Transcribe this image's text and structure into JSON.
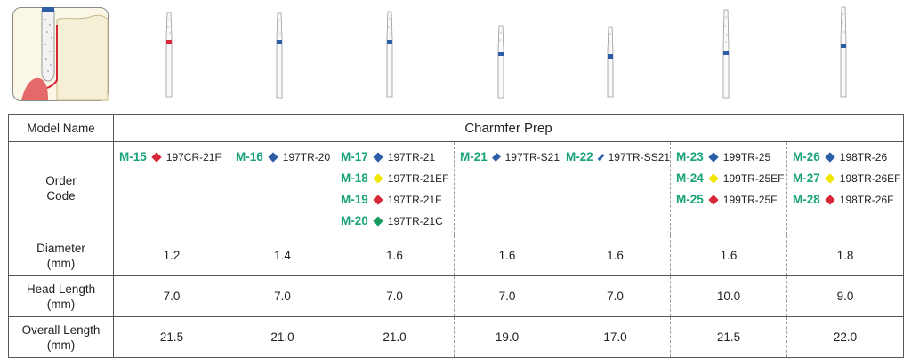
{
  "colors": {
    "model_green": "#1aa37a",
    "red": "#d72638",
    "blue": "#2b5ea7",
    "yellow": "#f2e600",
    "green": "#159b5c"
  },
  "header": {
    "model_name_label": "Model Name",
    "product_title": "Charmfer Prep",
    "order_code_label_1": "Order",
    "order_code_label_2": "Code",
    "diameter_label_1": "Diameter",
    "diameter_label_2": "(mm)",
    "head_length_label_1": "Head Length",
    "head_length_label_2": "(mm)",
    "overall_length_label_1": "Overall Length",
    "overall_length_label_2": "(mm)"
  },
  "columns": [
    {
      "codes": [
        {
          "model": "M-15",
          "marker": "red",
          "code": "197CR-21F"
        }
      ],
      "diameter": "1.2",
      "head_length": "7.0",
      "overall_length": "21.5"
    },
    {
      "codes": [
        {
          "model": "M-16",
          "marker": "blue",
          "code": "197TR-20"
        }
      ],
      "diameter": "1.4",
      "head_length": "7.0",
      "overall_length": "21.0"
    },
    {
      "codes": [
        {
          "model": "M-17",
          "marker": "blue",
          "code": "197TR-21"
        },
        {
          "model": "M-18",
          "marker": "yellow",
          "code": "197TR-21EF"
        },
        {
          "model": "M-19",
          "marker": "red",
          "code": "197TR-21F"
        },
        {
          "model": "M-20",
          "marker": "green",
          "code": "197TR-21C"
        }
      ],
      "diameter": "1.6",
      "head_length": "7.0",
      "overall_length": "21.0"
    },
    {
      "codes": [
        {
          "model": "M-21",
          "marker": "blue",
          "code": "197TR-S21"
        }
      ],
      "diameter": "1.6",
      "head_length": "7.0",
      "overall_length": "19.0"
    },
    {
      "codes": [
        {
          "model": "M-22",
          "marker": "blue",
          "code": "197TR-SS21"
        }
      ],
      "diameter": "1.6",
      "head_length": "7.0",
      "overall_length": "17.0"
    },
    {
      "codes": [
        {
          "model": "M-23",
          "marker": "blue",
          "code": "199TR-25"
        },
        {
          "model": "M-24",
          "marker": "yellow",
          "code": "199TR-25EF"
        },
        {
          "model": "M-25",
          "marker": "red",
          "code": "199TR-25F"
        }
      ],
      "diameter": "1.6",
      "head_length": "10.0",
      "overall_length": "21.5"
    },
    {
      "codes": [
        {
          "model": "M-26",
          "marker": "blue",
          "code": "198TR-26"
        },
        {
          "model": "M-27",
          "marker": "yellow",
          "code": "198TR-26EF"
        },
        {
          "model": "M-28",
          "marker": "red",
          "code": "198TR-26F"
        }
      ],
      "diameter": "1.8",
      "head_length": "9.0",
      "overall_length": "22.0"
    }
  ],
  "burs": [
    {
      "band_color": "red"
    },
    {
      "band_color": "blue"
    },
    {
      "band_color": "blue"
    },
    {
      "band_color": "blue"
    },
    {
      "band_color": "blue"
    },
    {
      "band_color": "blue"
    },
    {
      "band_color": "blue"
    }
  ]
}
